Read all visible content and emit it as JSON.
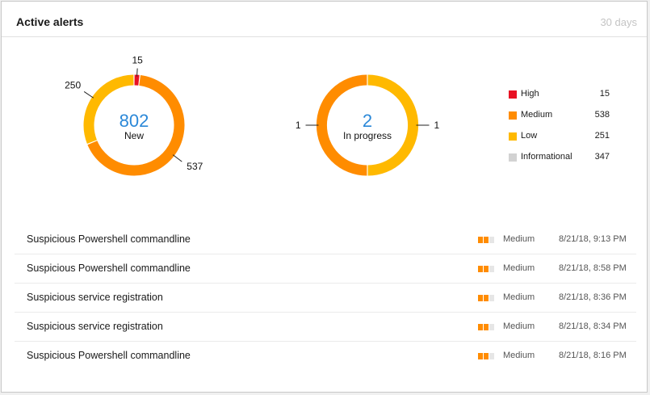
{
  "header": {
    "title": "Active alerts",
    "period": "30 days"
  },
  "colors": {
    "high": "#e81123",
    "medium": "#ff8c00",
    "low": "#ffb900",
    "informational": "#d2d2d2",
    "accent": "#2b88d8"
  },
  "donut_new": {
    "value": "802",
    "label": "New",
    "segments": [
      {
        "severity": "high",
        "value": 15,
        "label": "15"
      },
      {
        "severity": "medium",
        "value": 537,
        "label": "537"
      },
      {
        "severity": "low",
        "value": 250,
        "label": "250"
      }
    ]
  },
  "donut_progress": {
    "value": "2",
    "label": "In progress",
    "segments": [
      {
        "severity": "low",
        "value": 1,
        "label": "1"
      },
      {
        "severity": "medium",
        "value": 1,
        "label": "1"
      }
    ]
  },
  "legend": [
    {
      "severity": "high",
      "label": "High",
      "count": "15"
    },
    {
      "severity": "medium",
      "label": "Medium",
      "count": "538"
    },
    {
      "severity": "low",
      "label": "Low",
      "count": "251"
    },
    {
      "severity": "informational",
      "label": "Informational",
      "count": "347"
    }
  ],
  "alerts": [
    {
      "name": "Suspicious Powershell commandline",
      "severity": "Medium",
      "time": "8/21/18, 9:13 PM"
    },
    {
      "name": "Suspicious Powershell commandline",
      "severity": "Medium",
      "time": "8/21/18, 8:58 PM"
    },
    {
      "name": "Suspicious service registration",
      "severity": "Medium",
      "time": "8/21/18, 8:36 PM"
    },
    {
      "name": "Suspicious service registration",
      "severity": "Medium",
      "time": "8/21/18, 8:34 PM"
    },
    {
      "name": "Suspicious Powershell commandline",
      "severity": "Medium",
      "time": "8/21/18, 8:16 PM"
    }
  ]
}
